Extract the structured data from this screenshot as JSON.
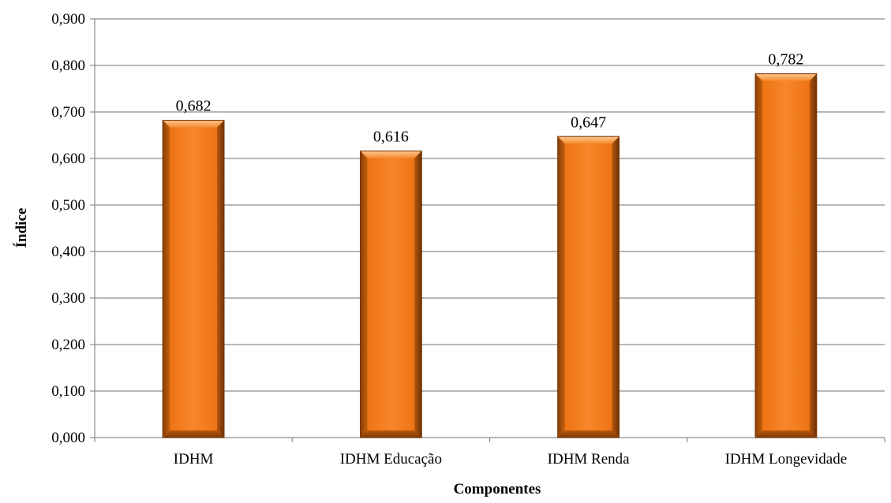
{
  "chart_data": {
    "type": "bar",
    "title": "",
    "xlabel": "Componentes",
    "ylabel": "Índice",
    "categories": [
      "IDHM",
      "IDHM Educação",
      "IDHM Renda",
      "IDHM Longevidade"
    ],
    "values": [
      0.682,
      0.616,
      0.647,
      0.782
    ],
    "value_labels": [
      "0,682",
      "0,616",
      "0,647",
      "0,782"
    ],
    "ylim": [
      0,
      0.9
    ],
    "yticks": [
      0,
      0.1,
      0.2,
      0.3,
      0.4,
      0.5,
      0.6,
      0.7,
      0.8,
      0.9
    ],
    "ytick_labels": [
      "0,000",
      "0,100",
      "0,200",
      "0,300",
      "0,400",
      "0,500",
      "0,600",
      "0,700",
      "0,800",
      "0,900"
    ],
    "grid": true,
    "legend": "none",
    "bar_color": "#F07A1A",
    "bar_edge_color": "#7A3A08",
    "grid_color": "#8C8C8C"
  }
}
